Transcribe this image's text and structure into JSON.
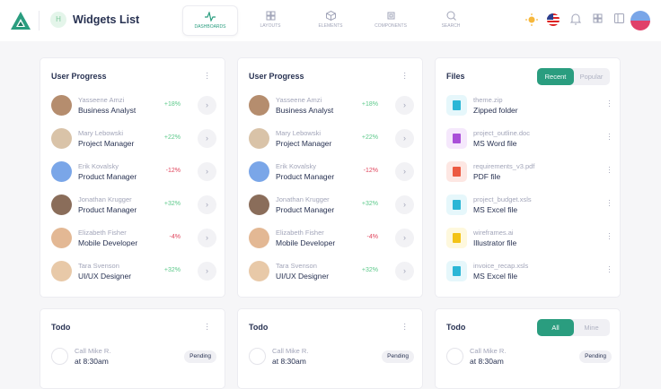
{
  "header": {
    "badge": "H",
    "title": "Widgets List",
    "nav": [
      {
        "label": "DASHBOARDS",
        "icon": "activity-icon",
        "active": true
      },
      {
        "label": "LAYOUTS",
        "icon": "grid-icon"
      },
      {
        "label": "ELEMENTS",
        "icon": "box-icon"
      },
      {
        "label": "COMPONENTS",
        "icon": "cpu-icon"
      },
      {
        "label": "SEARCH",
        "icon": "search-icon"
      }
    ]
  },
  "colors": {
    "accent": "#2a9d7f",
    "positive": "#5cc98a",
    "negative": "#e0445c"
  },
  "progress": {
    "title": "User Progress",
    "users": [
      {
        "name": "Yasseene Amzi",
        "role": "Business Analyst",
        "change": "+18%"
      },
      {
        "name": "Mary Lebowski",
        "role": "Project Manager",
        "change": "+22%"
      },
      {
        "name": "Erik Kovalsky",
        "role": "Product Manager",
        "change": "-12%"
      },
      {
        "name": "Jonathan Krugger",
        "role": "Product Manager",
        "change": "+32%"
      },
      {
        "name": "Elizabeth Fisher",
        "role": "Mobile Developer",
        "change": "-4%"
      },
      {
        "name": "Tara Svenson",
        "role": "UI/UX Designer",
        "change": "+32%"
      }
    ]
  },
  "files": {
    "title": "Files",
    "tabs": [
      "Recent",
      "Popular"
    ],
    "items": [
      {
        "name": "theme.zip",
        "type": "Zipped folder",
        "ext": "ZIP",
        "color": "#2bb6d6",
        "bg": "#e6f7fb"
      },
      {
        "name": "project_outline.doc",
        "type": "MS Word file",
        "ext": "DOC",
        "color": "#a94fd8",
        "bg": "#f5e8fc"
      },
      {
        "name": "requirements_v3.pdf",
        "type": "PDF file",
        "ext": "PDF",
        "color": "#ec5a42",
        "bg": "#fde7e3"
      },
      {
        "name": "project_budget.xsls",
        "type": "MS Excel file",
        "ext": "XLS",
        "color": "#2bb6d6",
        "bg": "#e6f7fb"
      },
      {
        "name": "wireframes.ai",
        "type": "Illustrator file",
        "ext": "AI",
        "color": "#f3c316",
        "bg": "#fef8dd"
      },
      {
        "name": "invoice_recap.xsls",
        "type": "MS Excel file",
        "ext": "XLS",
        "color": "#2bb6d6",
        "bg": "#e6f7fb"
      }
    ]
  },
  "todo": {
    "title": "Todo",
    "tabs": [
      "All",
      "Mine"
    ],
    "item": {
      "task": "Call Mike R.",
      "time": "at 8:30am",
      "status": "Pending"
    }
  }
}
